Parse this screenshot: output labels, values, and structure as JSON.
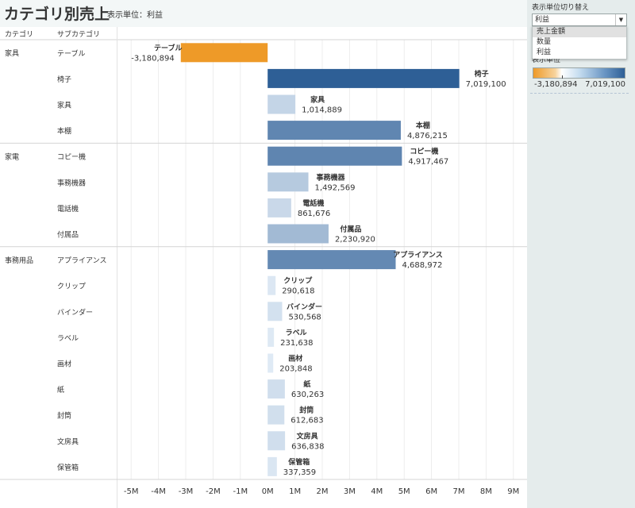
{
  "header": {
    "title": "カテゴリ別売上",
    "subtitle": "表示単位：利益"
  },
  "sidepanel": {
    "filter_title": "表示単位切り替え",
    "dropdown_value": "利益",
    "dropdown_options": [
      "売上金額",
      "数量",
      "利益"
    ],
    "highlighted_option": "売上金額",
    "legend_title": "表示単位",
    "legend_min": "-3,180,894",
    "legend_max": "7,019,100"
  },
  "chart_data": {
    "type": "bar",
    "orientation": "horizontal",
    "column_headers": [
      "カテゴリ",
      "サブカテゴリ"
    ],
    "xlim": [
      -5500000,
      9500000
    ],
    "xticks": [
      -5000000,
      -4000000,
      -3000000,
      -2000000,
      -1000000,
      0,
      1000000,
      2000000,
      3000000,
      4000000,
      5000000,
      6000000,
      7000000,
      8000000,
      9000000
    ],
    "xtick_labels": [
      "-5M",
      "-4M",
      "-3M",
      "-2M",
      "-1M",
      "0M",
      "1M",
      "2M",
      "3M",
      "4M",
      "5M",
      "6M",
      "7M",
      "8M",
      "9M"
    ],
    "color_scale": {
      "min": -3180894,
      "max": 7019100,
      "min_color": "#ee9a28",
      "max_color": "#2e5f96"
    },
    "groups": [
      {
        "category": "家具",
        "items": [
          {
            "subcategory": "テーブル",
            "value": -3180894,
            "label": "-3,180,894"
          },
          {
            "subcategory": "椅子",
            "value": 7019100,
            "label": "7,019,100"
          },
          {
            "subcategory": "家具",
            "value": 1014889,
            "label": "1,014,889"
          },
          {
            "subcategory": "本棚",
            "value": 4876215,
            "label": "4,876,215"
          }
        ]
      },
      {
        "category": "家電",
        "items": [
          {
            "subcategory": "コピー機",
            "value": 4917467,
            "label": "4,917,467"
          },
          {
            "subcategory": "事務機器",
            "value": 1492569,
            "label": "1,492,569"
          },
          {
            "subcategory": "電話機",
            "value": 861676,
            "label": "861,676"
          },
          {
            "subcategory": "付属品",
            "value": 2230920,
            "label": "2,230,920"
          }
        ]
      },
      {
        "category": "事務用品",
        "items": [
          {
            "subcategory": "アプライアンス",
            "value": 4688972,
            "label": "4,688,972"
          },
          {
            "subcategory": "クリップ",
            "value": 290618,
            "label": "290,618"
          },
          {
            "subcategory": "バインダー",
            "value": 530568,
            "label": "530,568"
          },
          {
            "subcategory": "ラベル",
            "value": 231638,
            "label": "231,638"
          },
          {
            "subcategory": "画材",
            "value": 203848,
            "label": "203,848"
          },
          {
            "subcategory": "紙",
            "value": 630263,
            "label": "630,263"
          },
          {
            "subcategory": "封筒",
            "value": 612683,
            "label": "612,683"
          },
          {
            "subcategory": "文房具",
            "value": 636838,
            "label": "636,838"
          },
          {
            "subcategory": "保管箱",
            "value": 337359,
            "label": "337,359"
          }
        ]
      }
    ]
  }
}
